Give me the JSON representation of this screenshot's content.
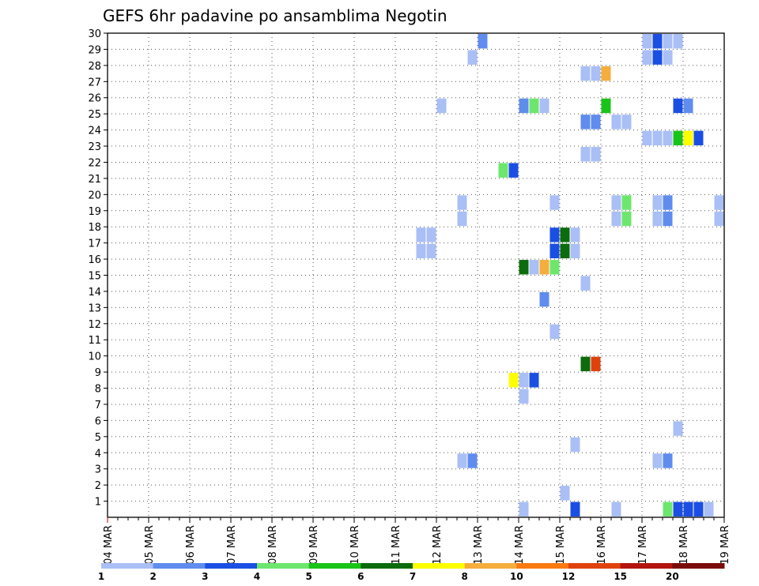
{
  "chart_data": {
    "type": "heatmap",
    "title": "GEFS 6hr padavine po ansamblima Negotin",
    "x_categories": [
      "04 MAR",
      "05 MAR",
      "06 MAR",
      "07 MAR",
      "08 MAR",
      "09 MAR",
      "10 MAR",
      "11 MAR",
      "12 MAR",
      "13 MAR",
      "14 MAR",
      "15 MAR",
      "16 MAR",
      "17 MAR",
      "18 MAR",
      "19 MAR"
    ],
    "x_range": [
      0,
      15
    ],
    "x_step_days": 0.25,
    "y_labels": [
      "1",
      "2",
      "3",
      "4",
      "5",
      "6",
      "7",
      "8",
      "9",
      "10",
      "11",
      "12",
      "13",
      "14",
      "15",
      "16",
      "17",
      "18",
      "19",
      "20",
      "21",
      "22",
      "23",
      "24",
      "25",
      "26",
      "27",
      "28",
      "29",
      "30"
    ],
    "y_range": [
      0,
      30
    ],
    "grid": true,
    "legend": {
      "position": "bottom",
      "labels": [
        "1",
        "2",
        "3",
        "4",
        "5",
        "6",
        "7",
        "8",
        "10",
        "12",
        "15",
        "20"
      ],
      "colors": [
        "#a9bff5",
        "#5f8cee",
        "#1b4fe3",
        "#6ee66e",
        "#19c419",
        "#0c6b0c",
        "#ffff00",
        "#f5ad3b",
        "#f97a10",
        "#e0420d",
        "#b4140e",
        "#7a0c08"
      ]
    },
    "cells": [
      {
        "x": 9.0,
        "y": 29,
        "c": 2
      },
      {
        "x": 13.0,
        "y": 29,
        "c": 1
      },
      {
        "x": 13.25,
        "y": 29,
        "c": 3
      },
      {
        "x": 13.5,
        "y": 29,
        "c": 1
      },
      {
        "x": 13.75,
        "y": 29,
        "c": 1
      },
      {
        "x": 8.75,
        "y": 28,
        "c": 1
      },
      {
        "x": 13.0,
        "y": 28,
        "c": 1
      },
      {
        "x": 13.25,
        "y": 28,
        "c": 3
      },
      {
        "x": 13.5,
        "y": 28,
        "c": 1
      },
      {
        "x": 11.5,
        "y": 27,
        "c": 1
      },
      {
        "x": 11.75,
        "y": 27,
        "c": 1
      },
      {
        "x": 12.0,
        "y": 27,
        "c": 8
      },
      {
        "x": 8.0,
        "y": 25,
        "c": 1
      },
      {
        "x": 10.0,
        "y": 25,
        "c": 2
      },
      {
        "x": 10.25,
        "y": 25,
        "c": 4
      },
      {
        "x": 10.5,
        "y": 25,
        "c": 1
      },
      {
        "x": 12.0,
        "y": 25,
        "c": 5
      },
      {
        "x": 13.75,
        "y": 25,
        "c": 3
      },
      {
        "x": 14.0,
        "y": 25,
        "c": 2
      },
      {
        "x": 11.5,
        "y": 24,
        "c": 2
      },
      {
        "x": 11.75,
        "y": 24,
        "c": 2
      },
      {
        "x": 12.25,
        "y": 24,
        "c": 1
      },
      {
        "x": 12.5,
        "y": 24,
        "c": 1
      },
      {
        "x": 13.0,
        "y": 23,
        "c": 1
      },
      {
        "x": 13.25,
        "y": 23,
        "c": 1
      },
      {
        "x": 13.5,
        "y": 23,
        "c": 1
      },
      {
        "x": 13.75,
        "y": 23,
        "c": 5
      },
      {
        "x": 14.0,
        "y": 23,
        "c": 7
      },
      {
        "x": 14.25,
        "y": 23,
        "c": 3
      },
      {
        "x": 11.5,
        "y": 22,
        "c": 1
      },
      {
        "x": 11.75,
        "y": 22,
        "c": 1
      },
      {
        "x": 9.5,
        "y": 21,
        "c": 4
      },
      {
        "x": 9.75,
        "y": 21,
        "c": 3
      },
      {
        "x": 8.5,
        "y": 19,
        "c": 1
      },
      {
        "x": 10.75,
        "y": 19,
        "c": 1
      },
      {
        "x": 12.25,
        "y": 19,
        "c": 1
      },
      {
        "x": 12.5,
        "y": 19,
        "c": 4
      },
      {
        "x": 13.25,
        "y": 19,
        "c": 1
      },
      {
        "x": 13.5,
        "y": 19,
        "c": 2
      },
      {
        "x": 14.75,
        "y": 19,
        "c": 1
      },
      {
        "x": 8.5,
        "y": 18,
        "c": 1
      },
      {
        "x": 12.25,
        "y": 18,
        "c": 1
      },
      {
        "x": 12.5,
        "y": 18,
        "c": 4
      },
      {
        "x": 13.25,
        "y": 18,
        "c": 1
      },
      {
        "x": 13.5,
        "y": 18,
        "c": 2
      },
      {
        "x": 14.75,
        "y": 18,
        "c": 1
      },
      {
        "x": 7.5,
        "y": 17,
        "c": 1
      },
      {
        "x": 7.75,
        "y": 17,
        "c": 1
      },
      {
        "x": 10.75,
        "y": 17,
        "c": 3
      },
      {
        "x": 11.0,
        "y": 17,
        "c": 6
      },
      {
        "x": 11.25,
        "y": 17,
        "c": 1
      },
      {
        "x": 7.5,
        "y": 16,
        "c": 1
      },
      {
        "x": 7.75,
        "y": 16,
        "c": 1
      },
      {
        "x": 10.75,
        "y": 16,
        "c": 3
      },
      {
        "x": 11.0,
        "y": 16,
        "c": 6
      },
      {
        "x": 11.25,
        "y": 16,
        "c": 1
      },
      {
        "x": 10.0,
        "y": 15,
        "c": 6
      },
      {
        "x": 10.25,
        "y": 15,
        "c": 1
      },
      {
        "x": 10.5,
        "y": 15,
        "c": 8
      },
      {
        "x": 10.75,
        "y": 15,
        "c": 4
      },
      {
        "x": 11.5,
        "y": 14,
        "c": 1
      },
      {
        "x": 10.5,
        "y": 13,
        "c": 2
      },
      {
        "x": 10.75,
        "y": 11,
        "c": 1
      },
      {
        "x": 11.5,
        "y": 9,
        "c": 6
      },
      {
        "x": 11.75,
        "y": 9,
        "c": 10
      },
      {
        "x": 9.75,
        "y": 8,
        "c": 7
      },
      {
        "x": 10.0,
        "y": 8,
        "c": 1
      },
      {
        "x": 10.25,
        "y": 8,
        "c": 3
      },
      {
        "x": 10.0,
        "y": 7,
        "c": 1
      },
      {
        "x": 13.75,
        "y": 5,
        "c": 1
      },
      {
        "x": 11.25,
        "y": 4,
        "c": 1
      },
      {
        "x": 8.5,
        "y": 3,
        "c": 1
      },
      {
        "x": 8.75,
        "y": 3,
        "c": 2
      },
      {
        "x": 13.25,
        "y": 3,
        "c": 1
      },
      {
        "x": 13.5,
        "y": 3,
        "c": 2
      },
      {
        "x": 11.0,
        "y": 1,
        "c": 1
      },
      {
        "x": 10.0,
        "y": 0,
        "c": 1
      },
      {
        "x": 11.25,
        "y": 0,
        "c": 3
      },
      {
        "x": 12.25,
        "y": 0,
        "c": 1
      },
      {
        "x": 13.5,
        "y": 0,
        "c": 4
      },
      {
        "x": 13.75,
        "y": 0,
        "c": 3
      },
      {
        "x": 14.0,
        "y": 0,
        "c": 3
      },
      {
        "x": 14.25,
        "y": 0,
        "c": 3
      },
      {
        "x": 14.5,
        "y": 0,
        "c": 1
      }
    ]
  }
}
